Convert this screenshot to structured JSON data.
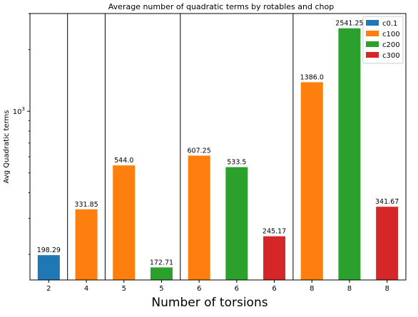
{
  "chart_data": {
    "type": "bar",
    "title": "Average number of quadratic terms by rotables and chop",
    "xlabel": "Number of torsions",
    "ylabel": "Avg Quadratic terms",
    "yscale": "log",
    "ylim": [
      150,
      3000
    ],
    "y_major_tick": {
      "value": 1000,
      "label_base": "10",
      "label_exp": "3"
    },
    "grid": false,
    "legend_position": "top-right",
    "legend": [
      {
        "name": "c0.1",
        "color": "#1f77b4"
      },
      {
        "name": "c100",
        "color": "#ff7f0e"
      },
      {
        "name": "c200",
        "color": "#2ca02c"
      },
      {
        "name": "c300",
        "color": "#d62728"
      }
    ],
    "categories": [
      "2",
      "4",
      "5",
      "5",
      "6",
      "6",
      "6",
      "8",
      "8",
      "8"
    ],
    "bars": [
      {
        "category": "2",
        "series": "c0.1",
        "value": 198.29,
        "label": "198.29"
      },
      {
        "category": "4",
        "series": "c100",
        "value": 331.85,
        "label": "331.85"
      },
      {
        "category": "5",
        "series": "c100",
        "value": 544.0,
        "label": "544.0"
      },
      {
        "category": "5",
        "series": "c200",
        "value": 172.71,
        "label": "172.71"
      },
      {
        "category": "6",
        "series": "c100",
        "value": 607.25,
        "label": "607.25"
      },
      {
        "category": "6",
        "series": "c200",
        "value": 533.5,
        "label": "533.5"
      },
      {
        "category": "6",
        "series": "c300",
        "value": 245.17,
        "label": "245.17"
      },
      {
        "category": "8",
        "series": "c100",
        "value": 1386.0,
        "label": "1386.0"
      },
      {
        "category": "8",
        "series": "c200",
        "value": 2541.25,
        "label": "2541.25"
      },
      {
        "category": "8",
        "series": "c300",
        "value": 341.67,
        "label": "341.67"
      }
    ],
    "group_separators_after_index": [
      0,
      1,
      3,
      6
    ]
  }
}
